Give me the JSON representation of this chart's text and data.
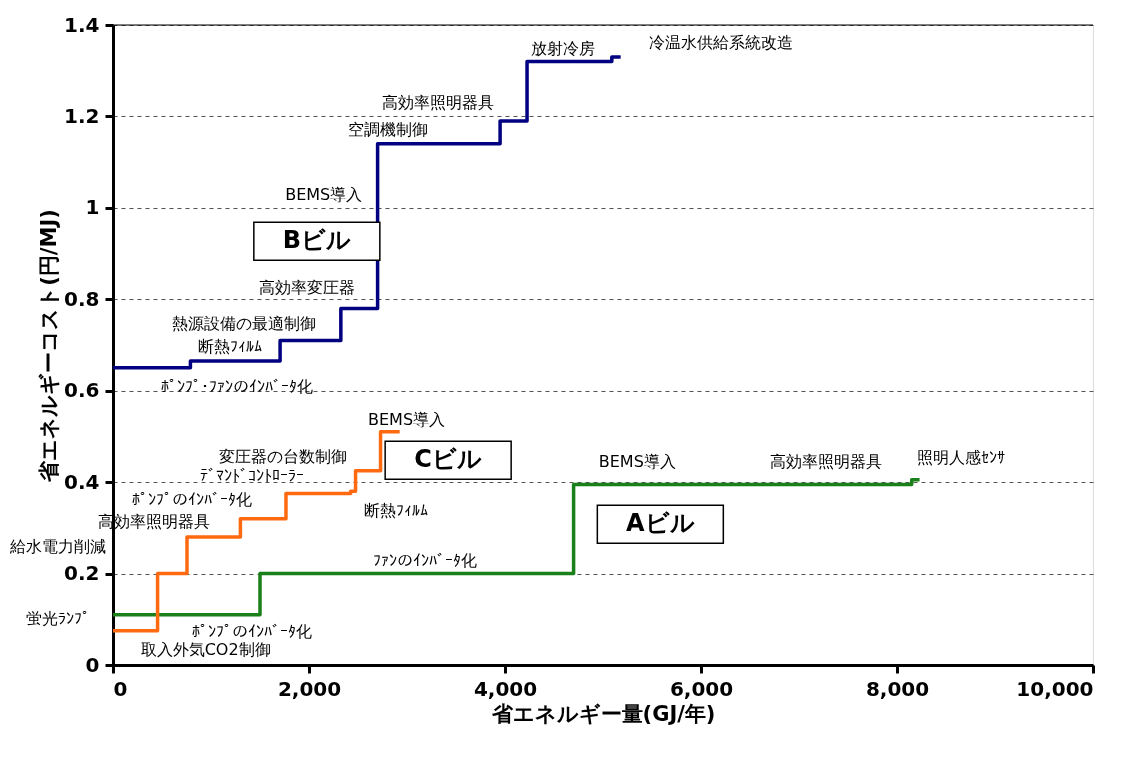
{
  "chart_data": {
    "type": "step",
    "xlabel": "省エネルギー量(GJ/年)",
    "ylabel": "省エネルギーコスト(円/MJ)",
    "series": [
      {
        "name": "Aビル",
        "color": "#1a801a",
        "x": [
          0,
          1500,
          4700,
          8150,
          8230
        ],
        "values": [
          0.11,
          0.2,
          0.395,
          0.405,
          0.405
        ]
      },
      {
        "name": "Bビル",
        "color": "#000080",
        "x": [
          0,
          790,
          1705,
          2325,
          2700,
          3950,
          4225,
          5090,
          5180
        ],
        "values": [
          0.65,
          0.665,
          0.71,
          0.78,
          1.14,
          1.19,
          1.32,
          1.33,
          1.33
        ]
      },
      {
        "name": "Cビル",
        "color": "#ff6a10",
        "x": [
          0,
          455,
          755,
          1300,
          1765,
          2425,
          2475,
          2730,
          2925
        ],
        "values": [
          0.075,
          0.2,
          0.28,
          0.32,
          0.375,
          0.38,
          0.425,
          0.51,
          0.51
        ]
      }
    ],
    "xlim": [
      0,
      10000
    ],
    "xticks": [
      0,
      {
        "value": 2000,
        "label": "2,000"
      },
      {
        "value": 4000,
        "label": "4,000"
      },
      {
        "value": 6000,
        "label": "6,000"
      },
      {
        "value": 8000,
        "label": "8,000"
      },
      {
        "value": 10000,
        "label": "10,000"
      }
    ],
    "ylim": [
      0,
      1.4
    ],
    "yticks": [
      0,
      0.2,
      0.4,
      0.6,
      0.8,
      1,
      1.2,
      1.4
    ],
    "grid": "y",
    "line_style": "solid",
    "marker": "none",
    "annotations": [
      "ﾎﾟﾝﾌﾟ･ﾌｧﾝのｲﾝﾊﾞｰﾀ化",
      "断熱ﾌｨﾙﾑ",
      "熱源設備の最適制御",
      "高効率変圧器",
      "BEMS導入",
      "空調機制御",
      "高効率照明器具",
      "放射冷房",
      "冷温水供給系統改造",
      "取入外気CO2制御",
      "ﾎﾟﾝﾌﾟのｲﾝﾊﾞｰﾀ化",
      "蛍光ﾗﾝﾌﾟ",
      "給水電力削減",
      "高効率照明器具",
      "ﾎﾟﾝﾌﾟのｲﾝﾊﾞｰﾀ化",
      "ﾃﾞﾏﾝﾄﾞｺﾝﾄﾛｰﾗｰ",
      "変圧器の台数制御",
      "断熱ﾌｨﾙﾑ",
      "BEMS導入",
      "ﾌｧﾝのｲﾝﾊﾞｰﾀ化",
      "BEMS導入",
      "高効率照明器具",
      "照明人感ｾﾝｻ"
    ]
  }
}
